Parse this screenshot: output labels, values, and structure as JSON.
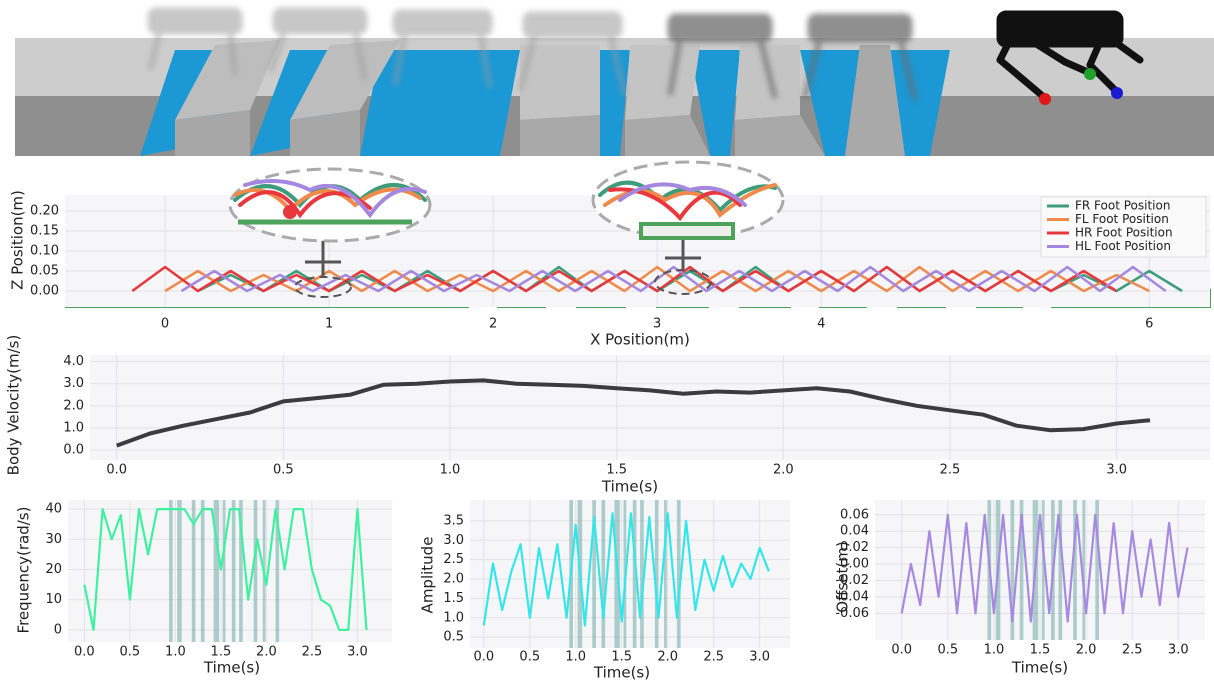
{
  "chart_data": [
    {
      "type": "line",
      "xlabel": "X Position(m)",
      "ylabel": "Z Position(m)",
      "xlim": [
        -0.61,
        6.37
      ],
      "ylim": [
        -0.04,
        0.24
      ],
      "xticks": [
        0,
        1,
        2,
        3,
        4,
        6
      ],
      "yticks": [
        {
          "value": 0,
          "label": "0.00"
        },
        0.05,
        {
          "value": 0.1,
          "label": "0.10"
        },
        0.15,
        {
          "value": 0.2,
          "label": "0.20"
        }
      ],
      "grid": true,
      "legend": "upper right",
      "series": [
        {
          "name": "FR Foot Position",
          "color": "#3d9c7c",
          "x": [
            0.2,
            0.4,
            0.6,
            0.8,
            1,
            1.2,
            1.4,
            1.6,
            1.8,
            2,
            2.2,
            2.4,
            2.6,
            2.8,
            3,
            3.2,
            3.4,
            3.6,
            3.8,
            4,
            4.2,
            4.4,
            4.6,
            4.8,
            5,
            5.2,
            5.4,
            5.6,
            5.8,
            6,
            6.2
          ],
          "values": [
            0,
            0.04,
            0,
            0.05,
            0,
            0.04,
            0,
            0.05,
            0,
            0.05,
            0,
            0.06,
            0,
            0.05,
            0,
            0.05,
            0,
            0.06,
            0,
            0.05,
            0,
            0.06,
            0,
            0.05,
            0,
            0.05,
            0,
            0.04,
            0,
            0.05,
            0
          ]
        },
        {
          "name": "FL Foot Position",
          "color": "#f08a4b",
          "x": [
            0,
            0.2,
            0.4,
            0.6,
            0.8,
            1,
            1.2,
            1.4,
            1.6,
            1.8,
            2,
            2.2,
            2.4,
            2.6,
            2.8,
            3,
            3.2,
            3.4,
            3.6,
            3.8,
            4,
            4.2,
            4.4,
            4.6,
            4.8,
            5,
            5.2,
            5.4,
            5.6,
            5.8,
            6
          ],
          "values": [
            0,
            0.05,
            0,
            0.04,
            0,
            0.05,
            0,
            0.05,
            0,
            0.04,
            0,
            0.05,
            0,
            0.05,
            0,
            0.06,
            0,
            0.05,
            0,
            0.05,
            0,
            0.05,
            0,
            0.06,
            0,
            0.05,
            0,
            0.05,
            0,
            0.04,
            0
          ]
        },
        {
          "name": "HR Foot Position",
          "color": "#e8383d",
          "x": [
            -0.2,
            0,
            0.2,
            0.4,
            0.6,
            0.8,
            1,
            1.2,
            1.4,
            1.6,
            1.8,
            2,
            2.2,
            2.4,
            2.6,
            2.8,
            3,
            3.2,
            3.4,
            3.6,
            3.8,
            4,
            4.2,
            4.4,
            4.6,
            4.8,
            5,
            5.2,
            5.4,
            5.6,
            5.8
          ],
          "values": [
            0,
            0.06,
            0,
            0.05,
            0,
            0.04,
            0,
            0.05,
            0,
            0.04,
            0,
            0.05,
            0,
            0.05,
            0,
            0.05,
            0,
            0.06,
            0,
            0.05,
            0,
            0.05,
            0,
            0.06,
            0,
            0.05,
            0,
            0.05,
            0,
            0.05,
            0
          ]
        },
        {
          "name": "HL Foot Position",
          "color": "#a587e0",
          "x": [
            0.1,
            0.3,
            0.5,
            0.7,
            0.9,
            1.1,
            1.3,
            1.5,
            1.7,
            1.9,
            2.1,
            2.3,
            2.5,
            2.7,
            2.9,
            3.1,
            3.3,
            3.5,
            3.7,
            3.9,
            4.1,
            4.3,
            4.5,
            4.7,
            4.9,
            5.1,
            5.3,
            5.5,
            5.7,
            5.9,
            6.1
          ],
          "values": [
            0,
            0.05,
            0,
            0.04,
            0,
            0.04,
            0,
            0.05,
            0,
            0.04,
            0,
            0.05,
            0,
            0.05,
            0,
            0.06,
            0,
            0.05,
            0,
            0.05,
            0,
            0.06,
            0,
            0.05,
            0,
            0.05,
            0,
            0.06,
            0,
            0.06,
            0
          ]
        }
      ]
    },
    {
      "type": "line",
      "xlabel": "Time(s)",
      "ylabel": "Body Velocity(m/s)",
      "color": "#3c3c3c",
      "xlim": [
        -0.08,
        3.28
      ],
      "ylim": [
        -0.45,
        4.3
      ],
      "xticks": [
        {
          "value": 0,
          "label": "0.0"
        },
        0.5,
        {
          "value": 1,
          "label": "1.0"
        },
        1.5,
        {
          "value": 2,
          "label": "2.0"
        },
        2.5,
        {
          "value": 3,
          "label": "3.0"
        }
      ],
      "yticks": [
        {
          "value": 0,
          "label": "0.0"
        },
        {
          "value": 1,
          "label": "1.0"
        },
        {
          "value": 2,
          "label": "2.0"
        },
        {
          "value": 3,
          "label": "3.0"
        },
        {
          "value": 4,
          "label": "4.0"
        }
      ],
      "grid": true,
      "x": [
        0,
        0.1,
        0.2,
        0.3,
        0.4,
        0.5,
        0.6,
        0.7,
        0.8,
        0.9,
        1,
        1.1,
        1.2,
        1.3,
        1.4,
        1.5,
        1.6,
        1.7,
        1.8,
        1.9,
        2,
        2.1,
        2.2,
        2.3,
        2.4,
        2.5,
        2.6,
        2.7,
        2.8,
        2.9,
        3,
        3.1
      ],
      "values": [
        0.2,
        0.75,
        1.1,
        1.4,
        1.7,
        2.2,
        2.35,
        2.5,
        2.95,
        3.0,
        3.1,
        3.15,
        3.0,
        2.95,
        2.9,
        2.8,
        2.7,
        2.55,
        2.65,
        2.6,
        2.7,
        2.8,
        2.65,
        2.3,
        2.0,
        1.8,
        1.6,
        1.1,
        0.9,
        0.95,
        1.2,
        1.35
      ]
    },
    {
      "type": "line",
      "xlabel": "Time(s)",
      "ylabel": "Frequency(rad/s)",
      "color": "#3cf2a0",
      "xlim": [
        -0.18,
        3.38
      ],
      "ylim": [
        -4,
        43
      ],
      "xticks": [
        {
          "value": 0,
          "label": "0.0"
        },
        0.5,
        {
          "value": 1,
          "label": "1.0"
        },
        1.5,
        {
          "value": 2,
          "label": "2.0"
        },
        2.5,
        {
          "value": 3,
          "label": "3.0"
        }
      ],
      "yticks": [
        0,
        10,
        20,
        30,
        40
      ],
      "grid": true,
      "highlight_color": "#6fa9a6",
      "highlight_spans": [
        [
          0.93,
          0.97
        ],
        [
          1.02,
          1.07
        ],
        [
          1.18,
          1.22
        ],
        [
          1.28,
          1.32
        ],
        [
          1.42,
          1.48
        ],
        [
          1.52,
          1.55
        ],
        [
          1.62,
          1.66
        ],
        [
          1.7,
          1.74
        ],
        [
          1.86,
          1.9
        ],
        [
          1.96,
          1.99
        ],
        [
          2.1,
          2.14
        ]
      ],
      "x": [
        0,
        0.1,
        0.2,
        0.3,
        0.4,
        0.5,
        0.6,
        0.7,
        0.8,
        0.9,
        1,
        1.1,
        1.2,
        1.3,
        1.4,
        1.5,
        1.6,
        1.7,
        1.8,
        1.9,
        2,
        2.1,
        2.2,
        2.3,
        2.4,
        2.5,
        2.6,
        2.7,
        2.8,
        2.9,
        3,
        3.1
      ],
      "values": [
        15,
        0,
        40,
        30,
        38,
        10,
        40,
        25,
        40,
        40,
        40,
        40,
        35,
        40,
        40,
        20,
        40,
        40,
        10,
        30,
        15,
        40,
        20,
        40,
        40,
        20,
        10,
        8,
        0,
        0,
        40,
        0
      ]
    },
    {
      "type": "line",
      "xlabel": "Time(s)",
      "ylabel": "Amplitude",
      "color": "#33e6ea",
      "xlim": [
        -0.15,
        3.33
      ],
      "ylim": [
        0.22,
        4.04
      ],
      "xticks": [
        {
          "value": 0,
          "label": "0.0"
        },
        0.5,
        {
          "value": 1,
          "label": "1.0"
        },
        1.5,
        {
          "value": 2,
          "label": "2.0"
        },
        2.5,
        {
          "value": 3,
          "label": "3.0"
        }
      ],
      "yticks": [
        0.5,
        {
          "value": 1,
          "label": "1.0"
        },
        1.5,
        {
          "value": 2,
          "label": "2.0"
        },
        2.5,
        {
          "value": 3,
          "label": "3.0"
        },
        3.5
      ],
      "grid": true,
      "highlight_color": "#6fa9a6",
      "highlight_spans": [
        [
          0.93,
          0.97
        ],
        [
          1.02,
          1.07
        ],
        [
          1.18,
          1.22
        ],
        [
          1.28,
          1.32
        ],
        [
          1.42,
          1.48
        ],
        [
          1.52,
          1.55
        ],
        [
          1.62,
          1.66
        ],
        [
          1.7,
          1.74
        ],
        [
          1.86,
          1.9
        ],
        [
          1.96,
          1.99
        ],
        [
          2.1,
          2.14
        ]
      ],
      "x": [
        0,
        0.1,
        0.2,
        0.3,
        0.4,
        0.5,
        0.6,
        0.7,
        0.8,
        0.9,
        1,
        1.1,
        1.2,
        1.3,
        1.4,
        1.5,
        1.6,
        1.7,
        1.8,
        1.9,
        2,
        2.1,
        2.2,
        2.3,
        2.4,
        2.5,
        2.6,
        2.7,
        2.8,
        2.9,
        3,
        3.1
      ],
      "values": [
        0.8,
        2.4,
        1.2,
        2.2,
        2.9,
        1.0,
        2.8,
        1.5,
        2.9,
        1.0,
        3.4,
        0.8,
        3.6,
        1.0,
        3.7,
        0.9,
        3.7,
        1.0,
        3.6,
        1.0,
        3.7,
        1.0,
        3.5,
        1.2,
        2.5,
        1.7,
        2.6,
        1.8,
        2.4,
        2.0,
        2.8,
        2.2
      ]
    },
    {
      "type": "line",
      "xlabel": "Time(s)",
      "ylabel": "Offset(m)",
      "color": "#a58ae0",
      "xlim": [
        -0.29,
        3.29
      ],
      "ylim": [
        -0.0925,
        0.078
      ],
      "xticks": [
        {
          "value": 0,
          "label": "0.0"
        },
        0.5,
        {
          "value": 1,
          "label": "1.0"
        },
        1.5,
        {
          "value": 2,
          "label": "2.0"
        },
        2.5,
        {
          "value": 3,
          "label": "3.0"
        }
      ],
      "yticks": [
        -0.06,
        -0.04,
        -0.02,
        {
          "value": 0,
          "label": "0.00"
        },
        0.02,
        0.04,
        0.06
      ],
      "grid": true,
      "highlight_color": "#6fa9a6",
      "highlight_spans": [
        [
          0.93,
          0.97
        ],
        [
          1.02,
          1.07
        ],
        [
          1.18,
          1.22
        ],
        [
          1.28,
          1.32
        ],
        [
          1.42,
          1.48
        ],
        [
          1.52,
          1.55
        ],
        [
          1.62,
          1.66
        ],
        [
          1.7,
          1.74
        ],
        [
          1.86,
          1.9
        ],
        [
          1.96,
          1.99
        ],
        [
          2.1,
          2.14
        ]
      ],
      "x": [
        0,
        0.1,
        0.2,
        0.3,
        0.4,
        0.5,
        0.6,
        0.7,
        0.8,
        0.9,
        1,
        1.1,
        1.2,
        1.3,
        1.4,
        1.5,
        1.6,
        1.7,
        1.8,
        1.9,
        2,
        2.1,
        2.2,
        2.3,
        2.4,
        2.5,
        2.6,
        2.7,
        2.8,
        2.9,
        3,
        3.1
      ],
      "values": [
        -0.06,
        0,
        -0.05,
        0.04,
        -0.04,
        0.06,
        -0.06,
        0.05,
        -0.06,
        0.06,
        -0.06,
        0.06,
        -0.07,
        0.06,
        -0.07,
        0.06,
        -0.06,
        0.06,
        -0.07,
        0.06,
        -0.06,
        0.06,
        -0.06,
        0.05,
        -0.06,
        0.04,
        -0.04,
        0.03,
        -0.05,
        0.05,
        -0.04,
        0.02
      ]
    }
  ]
}
